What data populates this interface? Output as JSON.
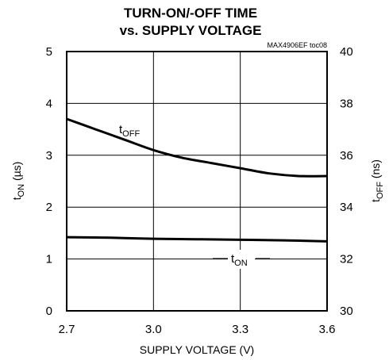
{
  "chart_data": {
    "type": "line",
    "title": [
      "TURN-ON/-OFF TIME",
      "vs. SUPPLY VOLTAGE"
    ],
    "tag": "MAX4906EF toc08",
    "xlabel": "SUPPLY VOLTAGE (V)",
    "ylabel_left": {
      "main": "t",
      "sub": "ON",
      "unit": " (µs)"
    },
    "ylabel_right": {
      "main": "t",
      "sub": "OFF",
      "unit": " (ns)"
    },
    "xlim": [
      2.7,
      3.6
    ],
    "ylim_left": [
      0,
      5
    ],
    "ylim_right": [
      30,
      40
    ],
    "x_ticks": [
      "2.7",
      "3.0",
      "3.3",
      "3.6"
    ],
    "x_tick_values": [
      2.7,
      3.0,
      3.3,
      3.6
    ],
    "y_left_ticks": [
      "0",
      "1",
      "2",
      "3",
      "4",
      "5"
    ],
    "y_left_tick_values": [
      0,
      1,
      2,
      3,
      4,
      5
    ],
    "y_right_ticks": [
      "30",
      "32",
      "34",
      "36",
      "38",
      "40"
    ],
    "y_right_tick_values": [
      30,
      32,
      34,
      36,
      38,
      40
    ],
    "grid": true,
    "series": [
      {
        "name": "tOFF",
        "label": {
          "main": "t",
          "sub": "OFF"
        },
        "axis": "right",
        "x": [
          2.7,
          2.8,
          2.9,
          3.0,
          3.1,
          3.2,
          3.3,
          3.4,
          3.5,
          3.6
        ],
        "y": [
          37.4,
          37.0,
          36.6,
          36.2,
          35.9,
          35.7,
          35.5,
          35.3,
          35.2,
          35.2
        ]
      },
      {
        "name": "tON",
        "label": {
          "main": "t",
          "sub": "ON"
        },
        "axis": "left",
        "x": [
          2.7,
          2.85,
          3.0,
          3.15,
          3.3,
          3.45,
          3.6
        ],
        "y": [
          1.42,
          1.41,
          1.39,
          1.38,
          1.37,
          1.36,
          1.34
        ]
      }
    ]
  }
}
